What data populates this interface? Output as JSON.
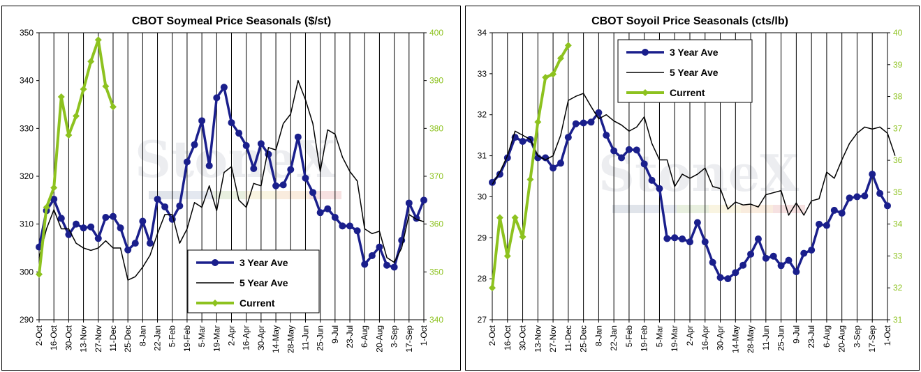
{
  "colors": {
    "three_year": "#1a1f8c",
    "five_year": "#000000",
    "current": "#8dc21f",
    "right_axis_text": "#8dc21f"
  },
  "watermark": "StoneX",
  "chart_data": [
    {
      "type": "line",
      "title": "CBOT Soymeal Price Seasonals ($/st)",
      "x_labels": [
        "2-Oct",
        "16-Oct",
        "30-Oct",
        "13-Nov",
        "27-Nov",
        "11-Dec",
        "25-Dec",
        "8-Jan",
        "22-Jan",
        "5-Feb",
        "19-Feb",
        "5-Mar",
        "19-Mar",
        "2-Apr",
        "16-Apr",
        "30-Apr",
        "14-May",
        "28-May",
        "11-Jun",
        "25-Jun",
        "9-Jul",
        "23-Jul",
        "6-Aug",
        "20-Aug",
        "3-Sep",
        "17-Sep",
        "1-Oct"
      ],
      "ylim_left": [
        290,
        350
      ],
      "yticks_left": [
        290,
        300,
        310,
        320,
        330,
        340,
        350
      ],
      "ylim_right": [
        340,
        400
      ],
      "yticks_right": [
        340,
        350,
        360,
        370,
        380,
        390,
        400
      ],
      "grid": "vertical",
      "legend_position": "bottom-center",
      "series": [
        {
          "name": "3 Year Ave",
          "axis": "left",
          "values": [
            305.2,
            312.8,
            315.2,
            311.2,
            307.8,
            310.0,
            309.2,
            309.4,
            307.0,
            311.4,
            311.6,
            309.2,
            304.6,
            306.0,
            310.6,
            306.0,
            315.2,
            313.6,
            311.0,
            313.8,
            323.0,
            326.6,
            331.6,
            322.2,
            336.4,
            338.6,
            331.2,
            329.0,
            326.4,
            321.6,
            326.8,
            324.6,
            318.0,
            318.2,
            321.4,
            328.2,
            319.6,
            316.6,
            312.4,
            313.2,
            311.4,
            309.6,
            309.6,
            308.6,
            301.6,
            303.4,
            305.2,
            301.4,
            301.0,
            306.6,
            314.4,
            311.2,
            315.0
          ]
        },
        {
          "name": "5 Year Ave",
          "axis": "left",
          "values": [
            303.0,
            309.0,
            313.0,
            309.0,
            309.0,
            306.0,
            305.0,
            304.5,
            305.0,
            306.5,
            305.0,
            305.0,
            298.3,
            299.0,
            301.0,
            303.5,
            308.0,
            312.0,
            312.0,
            306.0,
            309.0,
            314.5,
            313.5,
            318.0,
            312.8,
            320.8,
            322.0,
            315.0,
            313.5,
            318.5,
            318.0,
            326.0,
            325.5,
            331.0,
            333.0,
            340.0,
            336.0,
            331.0,
            321.0,
            329.7,
            328.8,
            324.0,
            321.0,
            319.0,
            309.0,
            308.0,
            308.5,
            303.0,
            302.0,
            305.0,
            312.0,
            311.0,
            310.5
          ]
        },
        {
          "name": "Current",
          "axis": "right",
          "values": [
            349.5,
            363.5,
            367.6,
            386.6,
            378.6,
            382.6,
            388.2,
            394.0,
            398.5,
            388.8,
            384.5
          ]
        }
      ]
    },
    {
      "type": "line",
      "title": "CBOT Soyoil Price Seasonals (cts/lb)",
      "x_labels": [
        "2-Oct",
        "16-Oct",
        "30-Oct",
        "13-Nov",
        "27-Nov",
        "11-Dec",
        "25-Dec",
        "8-Jan",
        "22-Jan",
        "5-Feb",
        "19-Feb",
        "5-Mar",
        "19-Mar",
        "2-Apr",
        "16-Apr",
        "30-Apr",
        "14-May",
        "28-May",
        "11-Jun",
        "25-Jun",
        "9-Jul",
        "23-Jul",
        "6-Aug",
        "20-Aug",
        "3-Sep",
        "17-Sep",
        "1-Oct"
      ],
      "ylim_left": [
        27,
        34
      ],
      "yticks_left": [
        27,
        28,
        29,
        30,
        31,
        32,
        33,
        34
      ],
      "ylim_right": [
        31,
        40
      ],
      "yticks_right": [
        31,
        32,
        33,
        34,
        35,
        36,
        37,
        38,
        39,
        40
      ],
      "grid": "vertical",
      "legend_position": "top-center",
      "series": [
        {
          "name": "3 Year Ave",
          "axis": "left",
          "values": [
            30.35,
            30.55,
            30.95,
            31.45,
            31.35,
            31.4,
            30.95,
            30.95,
            30.7,
            30.82,
            31.45,
            31.78,
            31.8,
            31.82,
            32.05,
            31.5,
            31.12,
            30.95,
            31.15,
            31.14,
            30.8,
            30.4,
            30.2,
            28.98,
            29.0,
            28.97,
            28.9,
            29.37,
            28.9,
            28.4,
            28.03,
            28.0,
            28.15,
            28.33,
            28.6,
            28.97,
            28.5,
            28.55,
            28.32,
            28.45,
            28.17,
            28.62,
            28.7,
            29.33,
            29.3,
            29.67,
            29.6,
            29.97,
            30.0,
            30.02,
            30.55,
            30.08,
            29.78
          ]
        },
        {
          "name": "5 Year Ave",
          "axis": "left",
          "values": [
            30.3,
            30.6,
            31.0,
            31.6,
            31.5,
            31.4,
            31.0,
            30.9,
            31.0,
            31.5,
            32.35,
            32.45,
            32.52,
            32.2,
            31.9,
            32.0,
            31.85,
            31.75,
            31.6,
            31.7,
            31.95,
            31.3,
            30.9,
            30.9,
            30.25,
            30.55,
            30.45,
            30.55,
            30.7,
            30.25,
            30.2,
            29.7,
            29.87,
            29.8,
            29.82,
            29.75,
            30.05,
            30.1,
            30.15,
            29.55,
            29.85,
            29.55,
            29.9,
            29.95,
            30.6,
            30.45,
            30.9,
            31.3,
            31.55,
            31.7,
            31.65,
            31.7,
            31.55,
            31.0
          ]
        },
        {
          "name": "Current",
          "axis": "right",
          "values": [
            32.0,
            34.2,
            33.0,
            34.2,
            33.6,
            35.4,
            37.2,
            38.6,
            38.7,
            39.2,
            39.6
          ]
        }
      ]
    }
  ]
}
